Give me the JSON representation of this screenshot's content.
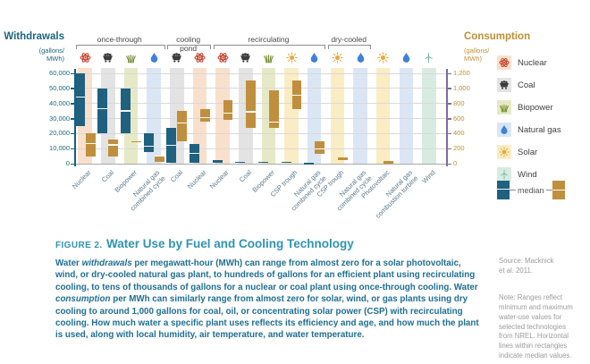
{
  "colors": {
    "withdrawal_bar": "#1f617f",
    "consumption_bar": "#c08f3e",
    "left_axis_line": "#17607e",
    "right_axis_line": "#7d6ba0",
    "title_teal": "#2f93b2",
    "body_teal": "#1f6e91",
    "note_gray": "#9b9b9b"
  },
  "chart_data": {
    "type": "bar",
    "subtype": "min-max-median range bars, dual axis",
    "left_axis": {
      "title": "Withdrawals",
      "unit": "(gallons/\nMWh)",
      "max": 60000,
      "ticks": [
        {
          "label": "60,000",
          "value": 60000
        },
        {
          "label": "50,000",
          "value": 50000
        },
        {
          "label": "40,000",
          "value": 40000
        },
        {
          "label": "30,000",
          "value": 30000
        },
        {
          "label": "20,000",
          "value": 20000
        },
        {
          "label": "10,000",
          "value": 10000
        },
        {
          "label": "0",
          "value": 0
        }
      ]
    },
    "right_axis": {
      "title": "Consumption",
      "unit": "(gallons/\nMWh)",
      "max": 1200,
      "ticks": [
        {
          "label": "1,200",
          "value": 1200
        },
        {
          "label": "1,000",
          "value": 1000
        },
        {
          "label": "800",
          "value": 800
        },
        {
          "label": "600",
          "value": 600
        },
        {
          "label": "400",
          "value": 400
        },
        {
          "label": "200",
          "value": 200
        },
        {
          "label": "0",
          "value": 0
        }
      ]
    },
    "groups": [
      {
        "label": "once-through",
        "from": 0,
        "to": 3
      },
      {
        "label": "cooling pond",
        "from": 4,
        "to": 5
      },
      {
        "label": "recirculating",
        "from": 6,
        "to": 10
      },
      {
        "label": "dry-cooled",
        "from": 11,
        "to": 12
      }
    ],
    "fuels": {
      "nuclear": {
        "band": "#f9e0cd",
        "icon_color": "#c4432e"
      },
      "coal": {
        "band": "#e3e3e3",
        "icon_color": "#3c3c3c"
      },
      "biopower": {
        "band": "#e6e9c5",
        "icon_color": "#6d8a2a"
      },
      "gas": {
        "band": "#dbe6f4",
        "icon_color": "#3f82d6"
      },
      "solar": {
        "band": "#faecc3",
        "icon_color": "#e9a93d"
      },
      "wind": {
        "band": "#d8ebe3",
        "icon_color": "#74b7a2"
      }
    },
    "columns": [
      {
        "label": "Nuclear",
        "fuel": "nuclear",
        "withdrawal": {
          "min": 25000,
          "max": 60000,
          "median": 44350
        },
        "consumption": {
          "min": 100,
          "max": 400,
          "median": 270
        }
      },
      {
        "label": "Coal",
        "fuel": "coal",
        "withdrawal": {
          "min": 20000,
          "max": 50000,
          "median": 36350
        },
        "consumption": {
          "min": 100,
          "max": 320,
          "median": 250
        }
      },
      {
        "label": "Biopower",
        "fuel": "biopower",
        "withdrawal": {
          "min": 20000,
          "max": 50000,
          "median": 35000
        },
        "consumption": {
          "min": 300,
          "max": 300,
          "median": 300
        }
      },
      {
        "label": "Natural gas\ncombined cycle",
        "fuel": "gas",
        "withdrawal": {
          "min": 7500,
          "max": 20000,
          "median": 11380
        },
        "consumption": {
          "min": 20,
          "max": 100,
          "median": 100
        }
      },
      {
        "label": "Coal",
        "fuel": "coal",
        "withdrawal": {
          "min": 300,
          "max": 24000,
          "median": 12225
        },
        "consumption": {
          "min": 300,
          "max": 700,
          "median": 545
        }
      },
      {
        "label": "Nuclear",
        "fuel": "nuclear",
        "withdrawal": {
          "min": 500,
          "max": 13000,
          "median": 7050
        },
        "consumption": {
          "min": 560,
          "max": 720,
          "median": 610
        }
      },
      {
        "label": "Nuclear",
        "fuel": "nuclear",
        "withdrawal": {
          "min": 800,
          "max": 2600,
          "median": 1100
        },
        "consumption": {
          "min": 580,
          "max": 845,
          "median": 670
        }
      },
      {
        "label": "Coal",
        "fuel": "coal",
        "withdrawal": {
          "min": 500,
          "max": 1200,
          "median": 1000
        },
        "consumption": {
          "min": 480,
          "max": 1100,
          "median": 690
        }
      },
      {
        "label": "Biopower",
        "fuel": "biopower",
        "withdrawal": {
          "min": 500,
          "max": 1400,
          "median": 880
        },
        "consumption": {
          "min": 480,
          "max": 980,
          "median": 550
        }
      },
      {
        "label": "CSP trough",
        "fuel": "solar",
        "withdrawal": {
          "min": 725,
          "max": 1110,
          "median": 906
        },
        "consumption": {
          "min": 725,
          "max": 1110,
          "median": 906
        }
      },
      {
        "label": "Natural gas\ncombined cycle",
        "fuel": "gas",
        "withdrawal": {
          "min": 150,
          "max": 285,
          "median": 255
        },
        "consumption": {
          "min": 130,
          "max": 300,
          "median": 200
        }
      },
      {
        "label": "CSP trough",
        "fuel": "solar",
        "withdrawal": {
          "min": 43,
          "max": 79,
          "median": 78
        },
        "consumption": {
          "min": 43,
          "max": 79,
          "median": 78
        }
      },
      {
        "label": "Natural gas\ncombined cycle",
        "fuel": "gas",
        "withdrawal": {
          "min": 0,
          "max": 4,
          "median": 2
        },
        "consumption": {
          "min": 0,
          "max": 4,
          "median": 2
        }
      },
      {
        "label": "Photovoltaic",
        "fuel": "solar",
        "withdrawal": {
          "min": 0,
          "max": 33,
          "median": 26
        },
        "consumption": {
          "min": 0,
          "max": 33,
          "median": 26
        }
      },
      {
        "label": "Natural gas\ncombustion turbine",
        "fuel": "gas",
        "withdrawal": {
          "min": 0,
          "max": 1,
          "median": 1
        },
        "consumption": {
          "min": 0,
          "max": 1,
          "median": 1
        }
      },
      {
        "label": "Wind",
        "fuel": "wind",
        "withdrawal": {
          "min": 0,
          "max": 0,
          "median": 0
        },
        "consumption": {
          "min": 0,
          "max": 0,
          "median": 0
        }
      }
    ],
    "legend": {
      "fuels": [
        {
          "label": "Nuclear",
          "fuel": "nuclear"
        },
        {
          "label": "Coal",
          "fuel": "coal"
        },
        {
          "label": "Biopower",
          "fuel": "biopower"
        },
        {
          "label": "Natural gas",
          "fuel": "gas"
        },
        {
          "label": "Solar",
          "fuel": "solar"
        },
        {
          "label": "Wind",
          "fuel": "wind"
        }
      ],
      "median_label": "median"
    }
  },
  "caption": {
    "figure_label": "FIGURE 2.",
    "title": "Water Use by Fuel and Cooling Technology",
    "body_segments": [
      {
        "text": "Water ",
        "italic": false
      },
      {
        "text": "withdrawals",
        "italic": true
      },
      {
        "text": " per megawatt-hour (MWh) can range from almost zero for a solar photovoltaic, wind, or dry-cooled natural gas plant, to hundreds of gallons for an efficient plant using recirculating cooling, to tens of thousands of gallons for a nuclear or coal plant using once-through cooling. Water ",
        "italic": false
      },
      {
        "text": "consumption",
        "italic": true
      },
      {
        "text": " per MWh can similarly range from almost zero for solar, wind, or gas plants using dry cooling to around 1,000 gallons for coal, oil, or concentrating solar power (CSP) with recirculating cooling. How much water a specific plant uses reflects its efficiency and age, and how much the plant is used, along with local humidity, air temperature, and water temperature.",
        "italic": false
      }
    ]
  },
  "notes": {
    "source_text": "Source: Macknick\net al. 2011.",
    "note_text": "Note: Ranges reflect\nminimum and maximum\nwater-use values for\nselected technologies\nfrom NREL. Horizontal\nlines within rectangles\nindicate median values."
  }
}
